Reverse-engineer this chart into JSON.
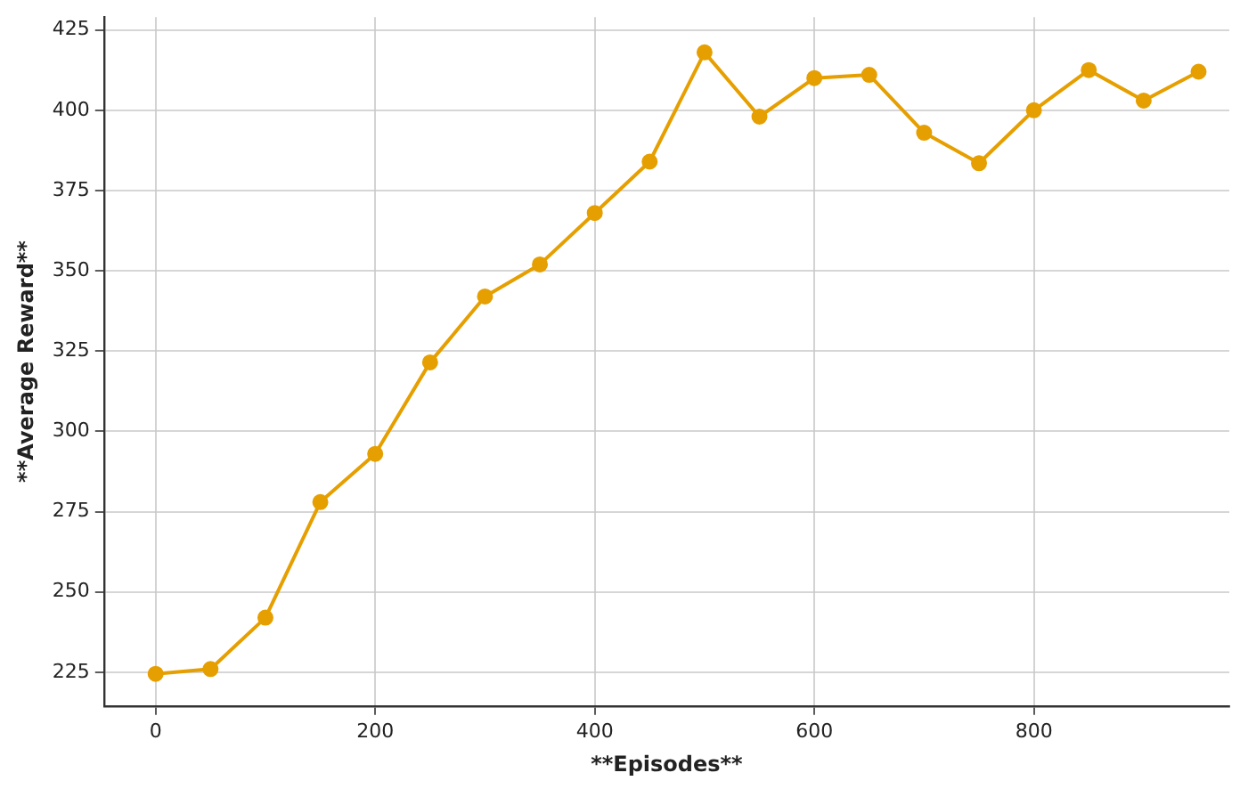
{
  "chart_data": {
    "type": "line",
    "xlabel": "**Episodes**",
    "ylabel": "**Average Reward**",
    "x": [
      0,
      50,
      100,
      150,
      200,
      250,
      300,
      350,
      400,
      450,
      500,
      550,
      600,
      650,
      700,
      750,
      800,
      850,
      900,
      950
    ],
    "series": [
      {
        "color": "#e69f00",
        "values": [
          224.5,
          226,
          242,
          278,
          293,
          321.5,
          342,
          352,
          368,
          384,
          418,
          398,
          410,
          411,
          393,
          383.5,
          400,
          412.5,
          403,
          412
        ]
      }
    ],
    "xlim": [
      -47,
      978
    ],
    "xticks": [
      0,
      200,
      400,
      600,
      800
    ],
    "ylim": [
      214.5,
      429
    ],
    "yticks": [
      225,
      250,
      275,
      300,
      325,
      350,
      375,
      400,
      425
    ],
    "grid": true,
    "legend": false,
    "marker": "circle",
    "line_style": "solid"
  }
}
